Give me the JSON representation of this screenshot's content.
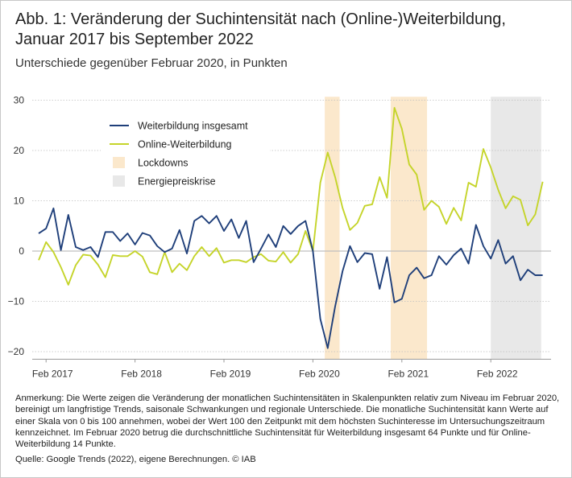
{
  "header": {
    "title_line1": "Abb. 1: Veränderung der Suchintensität nach (Online-)Weiterbildung,",
    "title_line2": "Januar 2017 bis September 2022",
    "subtitle": "Unterschiede gegenüber Februar 2020, in Punkten"
  },
  "footer": {
    "note": "Anmerkung: Die Werte zeigen die Veränderung der monatlichen Suchintensitäten in Skalenpunkten relativ zum Niveau im Februar 2020, bereinigt um langfristige Trends, saisonale Schwankungen und regionale Unterschiede. Die monatliche Suchintensität kann Werte auf einer Skala von 0 bis 100 annehmen, wobei der Wert 100 den Zeitpunkt mit dem höchsten Suchinteresse im Untersuchungszeitraum kennzeichnet. Im Februar 2020 betrug die durchschnittliche Suchintensität für Weiterbildung insgesamt 64 Punkte und für Online-Weiterbildung 14 Punkte.",
    "source": "Quelle: Google Trends (2022), eigene Berechnungen.  © IAB"
  },
  "chart_data": {
    "type": "line",
    "title": "Veränderung der Suchintensität nach (Online-)Weiterbildung, Januar 2017 bis September 2022",
    "ylabel": "Unterschiede gegenüber Februar 2020, in Punkten",
    "ylim": [
      -21.5,
      31
    ],
    "yticks": [
      30,
      20,
      10,
      0,
      -10,
      -20
    ],
    "x_start": "2017-01",
    "x_end": "2022-09",
    "xticks": [
      {
        "label": "Feb 2017",
        "index": 1
      },
      {
        "label": "Feb 2018",
        "index": 13
      },
      {
        "label": "Feb 2019",
        "index": 25
      },
      {
        "label": "Feb 2020",
        "index": 37
      },
      {
        "label": "Feb 2021",
        "index": 49
      },
      {
        "label": "Feb 2022",
        "index": 61
      }
    ],
    "shaded_periods": [
      {
        "name": "Lockdowns",
        "from_index": 38.6,
        "to_index": 40.6,
        "color": "#fbe8cc"
      },
      {
        "name": "Lockdowns",
        "from_index": 47.5,
        "to_index": 52.4,
        "color": "#fbe8cc"
      },
      {
        "name": "Energiepreiskrise",
        "from_index": 61.0,
        "to_index": 67.8,
        "color": "#e8e8e8"
      }
    ],
    "legend": [
      {
        "label": "Weiterbildung insgesamt",
        "kind": "line",
        "color": "#1f3f7a"
      },
      {
        "label": "Online-Weiterbildung",
        "kind": "line",
        "color": "#c5d42a"
      },
      {
        "label": "Lockdowns",
        "kind": "box",
        "color": "#fbe8cc"
      },
      {
        "label": "Energiepreiskrise",
        "kind": "box",
        "color": "#e8e8e8"
      }
    ],
    "series": [
      {
        "name": "Weiterbildung insgesamt",
        "color": "#1f3f7a",
        "values": [
          3.5,
          4.5,
          8.5,
          0.2,
          7.2,
          0.8,
          0.2,
          0.8,
          -1.2,
          3.8,
          3.8,
          2.0,
          3.5,
          1.3,
          3.6,
          3.1,
          1.0,
          -0.2,
          0.5,
          4.2,
          -0.5,
          6.0,
          7.0,
          5.5,
          7.0,
          4.0,
          6.3,
          2.6,
          6.0,
          -2.2,
          0.5,
          3.3,
          0.8,
          5.0,
          3.4,
          5.0,
          6.0,
          0.0,
          -13.5,
          -19.3,
          -11.0,
          -4.0,
          1.0,
          -2.2,
          -0.4,
          -0.6,
          -7.5,
          -1.2,
          -10.2,
          -9.5,
          -4.8,
          -3.3,
          -5.4,
          -4.8,
          -1.0,
          -2.7,
          -0.8,
          0.5,
          -2.5,
          5.2,
          1.0,
          -1.5,
          2.2,
          -2.5,
          -1.0,
          -5.8,
          -3.7,
          -4.8,
          -4.8
        ]
      },
      {
        "name": "Online-Weiterbildung",
        "color": "#c5d42a",
        "values": [
          -1.8,
          1.8,
          -0.2,
          -3.2,
          -6.7,
          -2.8,
          -0.7,
          -0.9,
          -2.7,
          -5.2,
          -0.8,
          -1.0,
          -1.0,
          0.0,
          -1.1,
          -4.2,
          -4.6,
          -0.2,
          -4.2,
          -2.5,
          -3.8,
          -1.0,
          0.8,
          -1.0,
          0.6,
          -2.3,
          -1.8,
          -1.8,
          -2.2,
          -1.2,
          -0.6,
          -1.9,
          -2.1,
          -0.2,
          -2.3,
          -0.6,
          4.0,
          0.0,
          13.6,
          19.6,
          14.7,
          8.6,
          4.2,
          5.6,
          9.0,
          9.3,
          14.7,
          10.6,
          28.5,
          24.3,
          17.2,
          15.2,
          8.2,
          10.0,
          8.8,
          5.4,
          8.6,
          6.1,
          13.6,
          12.8,
          20.3,
          16.6,
          12.2,
          8.5,
          10.9,
          10.2,
          5.1,
          7.3,
          13.8
        ]
      }
    ]
  }
}
